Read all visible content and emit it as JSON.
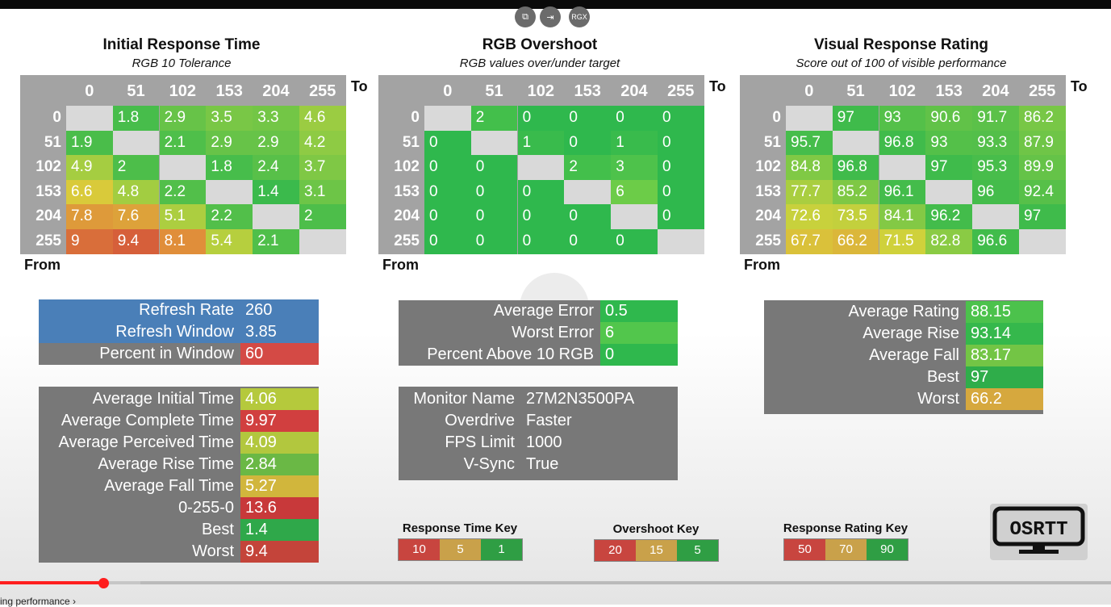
{
  "player": {
    "chapter": "ing performance ›",
    "progress": 0.093
  },
  "colors": {
    "top_icons": "#6b6b6b",
    "blue": "#4a7fb8",
    "grey": "#7a7a7a"
  },
  "top_icons": [
    {
      "name": "copy-icon",
      "glyph": "⧉"
    },
    {
      "name": "exit-icon",
      "glyph": "⇥"
    },
    {
      "name": "rgx-icon",
      "glyph": "RGX"
    }
  ],
  "corner_labels": {
    "to": "To",
    "from": "From"
  },
  "headers": [
    "0",
    "51",
    "102",
    "153",
    "204",
    "255"
  ],
  "grids": [
    {
      "title": "Initial Response Time",
      "subtitle": "RGB 10 Tolerance",
      "rows": [
        [
          "",
          "1.8",
          "2.9",
          "3.5",
          "3.3",
          "4.6"
        ],
        [
          "1.9",
          "",
          "2.1",
          "2.9",
          "2.9",
          "4.2"
        ],
        [
          "4.9",
          "2",
          "",
          "1.8",
          "2.4",
          "3.7"
        ],
        [
          "6.6",
          "4.8",
          "2.2",
          "",
          "1.4",
          "3.1"
        ],
        [
          "7.8",
          "7.6",
          "5.1",
          "2.2",
          "",
          "2"
        ],
        [
          "9",
          "9.4",
          "8.1",
          "5.4",
          "2.1",
          ""
        ]
      ],
      "scale": "rt"
    },
    {
      "title": "RGB Overshoot",
      "subtitle": "RGB values over/under target",
      "rows": [
        [
          "",
          "2",
          "0",
          "0",
          "0",
          "0"
        ],
        [
          "0",
          "",
          "1",
          "0",
          "1",
          "0"
        ],
        [
          "0",
          "0",
          "",
          "2",
          "3",
          "0"
        ],
        [
          "0",
          "0",
          "0",
          "",
          "6",
          "0"
        ],
        [
          "0",
          "0",
          "0",
          "0",
          "",
          "0"
        ],
        [
          "0",
          "0",
          "0",
          "0",
          "0",
          ""
        ]
      ],
      "scale": "os"
    },
    {
      "title": "Visual Response Rating",
      "subtitle": "Score out of 100 of visible performance",
      "rows": [
        [
          "",
          "97",
          "93",
          "90.6",
          "91.7",
          "86.2"
        ],
        [
          "95.7",
          "",
          "96.8",
          "93",
          "93.3",
          "87.9"
        ],
        [
          "84.8",
          "96.8",
          "",
          "97",
          "95.3",
          "89.9"
        ],
        [
          "77.7",
          "85.2",
          "96.1",
          "",
          "96",
          "92.4"
        ],
        [
          "72.6",
          "73.5",
          "84.1",
          "96.2",
          "",
          "97"
        ],
        [
          "67.7",
          "66.2",
          "71.5",
          "82.8",
          "96.6",
          ""
        ]
      ],
      "scale": "vr"
    }
  ],
  "refresh": [
    {
      "label": "Refresh Rate",
      "value": "260",
      "kbg": "#4a7fb8",
      "vbg": "#4a7fb8"
    },
    {
      "label": "Refresh Window",
      "value": "3.85",
      "kbg": "#4a7fb8",
      "vbg": "#4a7fb8"
    },
    {
      "label": "Percent in Window",
      "value": "60",
      "kbg": "#7a7a7a",
      "vbg": "#d44a45"
    }
  ],
  "times": [
    {
      "label": "Average Initial Time",
      "value": "4.06",
      "vbg": "#b5c93c"
    },
    {
      "label": "Average Complete Time",
      "value": "9.97",
      "vbg": "#d13f3f"
    },
    {
      "label": "Average Perceived Time",
      "value": "4.09",
      "vbg": "#b2c73e"
    },
    {
      "label": "Average Rise Time",
      "value": "2.84",
      "vbg": "#6ab845"
    },
    {
      "label": "Average Fall Time",
      "value": "5.27",
      "vbg": "#d1b63c"
    },
    {
      "label": "0-255-0",
      "value": "13.6",
      "vbg": "#c8393a"
    },
    {
      "label": "Best",
      "value": "1.4",
      "vbg": "#2fa84a"
    },
    {
      "label": "Worst",
      "value": "9.4",
      "vbg": "#c4443a"
    }
  ],
  "errors": [
    {
      "label": "Average Error",
      "value": "0.5",
      "vbg": "#2fb84d"
    },
    {
      "label": "Worst Error",
      "value": "6",
      "vbg": "#52c64c"
    },
    {
      "label": "Percent Above 10 RGB",
      "value": "0",
      "vbg": "#2fb84d"
    }
  ],
  "monitor": [
    {
      "label": "Monitor Name",
      "value": "27M2N3500PA"
    },
    {
      "label": "Overdrive",
      "value": "Faster"
    },
    {
      "label": "FPS Limit",
      "value": "1000"
    },
    {
      "label": "V-Sync",
      "value": "True"
    }
  ],
  "ratings": [
    {
      "label": "Average Rating",
      "value": "88.15",
      "vbg": "#4cc24c"
    },
    {
      "label": "Average Rise",
      "value": "93.14",
      "vbg": "#35b84c"
    },
    {
      "label": "Average Fall",
      "value": "83.17",
      "vbg": "#73c545"
    },
    {
      "label": "Best",
      "value": "97",
      "vbg": "#2fad4a"
    },
    {
      "label": "Worst",
      "value": "66.2",
      "vbg": "#d6a83e"
    }
  ],
  "keys": [
    {
      "title": "Response Time Key",
      "items": [
        {
          "t": "10",
          "c": "#c8453f"
        },
        {
          "t": "5",
          "c": "#c9a14a"
        },
        {
          "t": "1",
          "c": "#2f9e44"
        }
      ]
    },
    {
      "title": "Overshoot Key",
      "items": [
        {
          "t": "20",
          "c": "#c8453f"
        },
        {
          "t": "15",
          "c": "#c9a14a"
        },
        {
          "t": "5",
          "c": "#2f9e44"
        }
      ]
    },
    {
      "title": "Response Rating Key",
      "items": [
        {
          "t": "50",
          "c": "#c8453f"
        },
        {
          "t": "70",
          "c": "#c9a14a"
        },
        {
          "t": "90",
          "c": "#2f9e44"
        }
      ]
    }
  ],
  "logo": {
    "text": "OSRTT"
  }
}
